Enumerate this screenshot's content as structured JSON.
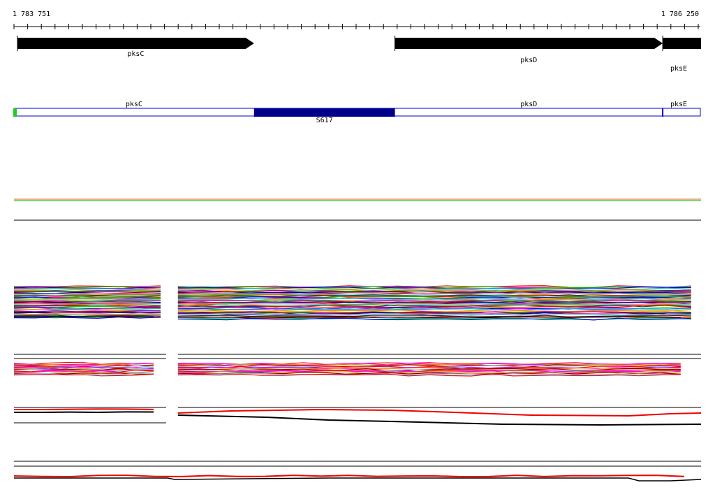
{
  "ruler": {
    "start_label": "1 783 751",
    "end_label": "1 786 250",
    "start": 1783751,
    "end": 1786250
  },
  "genes": [
    {
      "name": "pksC",
      "label": "pksC",
      "start": 1783751,
      "end": 1784625,
      "strand": "+"
    },
    {
      "name": "pksD",
      "label": "pksD",
      "start": 1785138,
      "end": 1786113,
      "strand": "+"
    },
    {
      "name": "pksE",
      "label": "pksE",
      "start": 1786113,
      "end": 1786250,
      "strand": "+"
    }
  ],
  "annotation": {
    "segments": [
      {
        "label": "pksC",
        "start": 1783751,
        "end": 1784625
      },
      {
        "label": "S617",
        "start": 1784625,
        "end": 1785138
      },
      {
        "label": "pksD",
        "start": 1785138,
        "end": 1786113
      },
      {
        "label": "pksE",
        "start": 1786113,
        "end": 1786250
      }
    ],
    "highlight_label": "S617",
    "colors": {
      "outline": "#0000cc",
      "highlight": "#00008b",
      "start_marker": "#22cc22"
    }
  },
  "track_gap": {
    "start": 1784305,
    "end": 1784348
  },
  "colors": {
    "palette": [
      "#ff0000",
      "#00cc00",
      "#0000ff",
      "#ff00ff",
      "#00cccc",
      "#cccc00",
      "#ff8800",
      "#8800ff",
      "#008800",
      "#880000",
      "#000088",
      "#ff66aa",
      "#66ccff",
      "#999900",
      "#333333"
    ],
    "single_orange": "#dd6600",
    "single_green": "#00aa00",
    "red": "#ee0000",
    "black": "#000000"
  }
}
